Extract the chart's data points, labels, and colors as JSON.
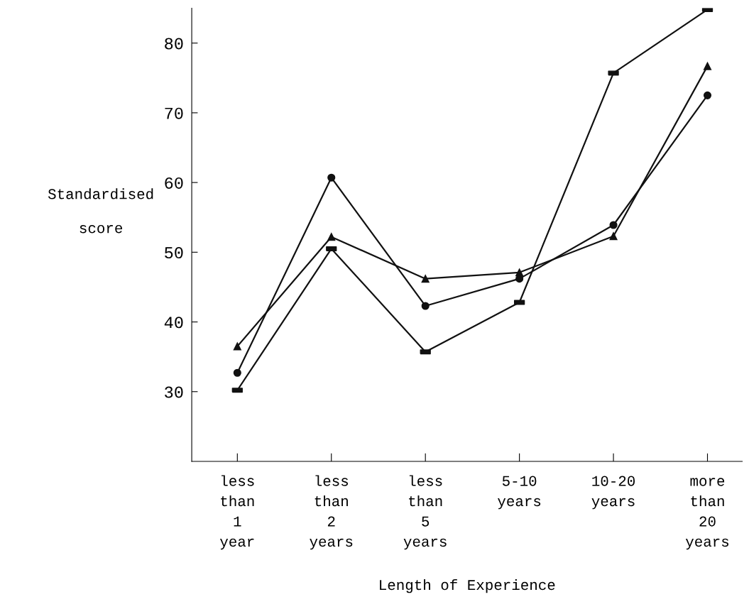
{
  "chart_data": {
    "type": "line",
    "categories": [
      "less\nthan\n1\nyear",
      "less\nthan\n2\nyears",
      "less\nthan\n5\nyears",
      "5-10\nyears",
      "10-20\nyears",
      "more\nthan\n20\nyears"
    ],
    "series": [
      {
        "color": "#111111",
        "marker": "triangle",
        "values": [
          36.5,
          52.2,
          46.2,
          47.1,
          52.3,
          76.7
        ]
      },
      {
        "color": "#111111",
        "marker": "circle",
        "values": [
          32.7,
          60.7,
          42.3,
          46.2,
          53.9,
          72.5
        ]
      },
      {
        "color": "#111111",
        "marker": "square",
        "values": [
          30.2,
          50.5,
          35.7,
          42.8,
          75.7,
          84.8
        ]
      }
    ],
    "xlabel": "Length of Experience",
    "ylabel": "Standardised\n\nscore",
    "ylim": [
      20,
      85
    ],
    "yticks": [
      30,
      40,
      50,
      60,
      70,
      80
    ],
    "grid": false,
    "line_style": "solid"
  }
}
